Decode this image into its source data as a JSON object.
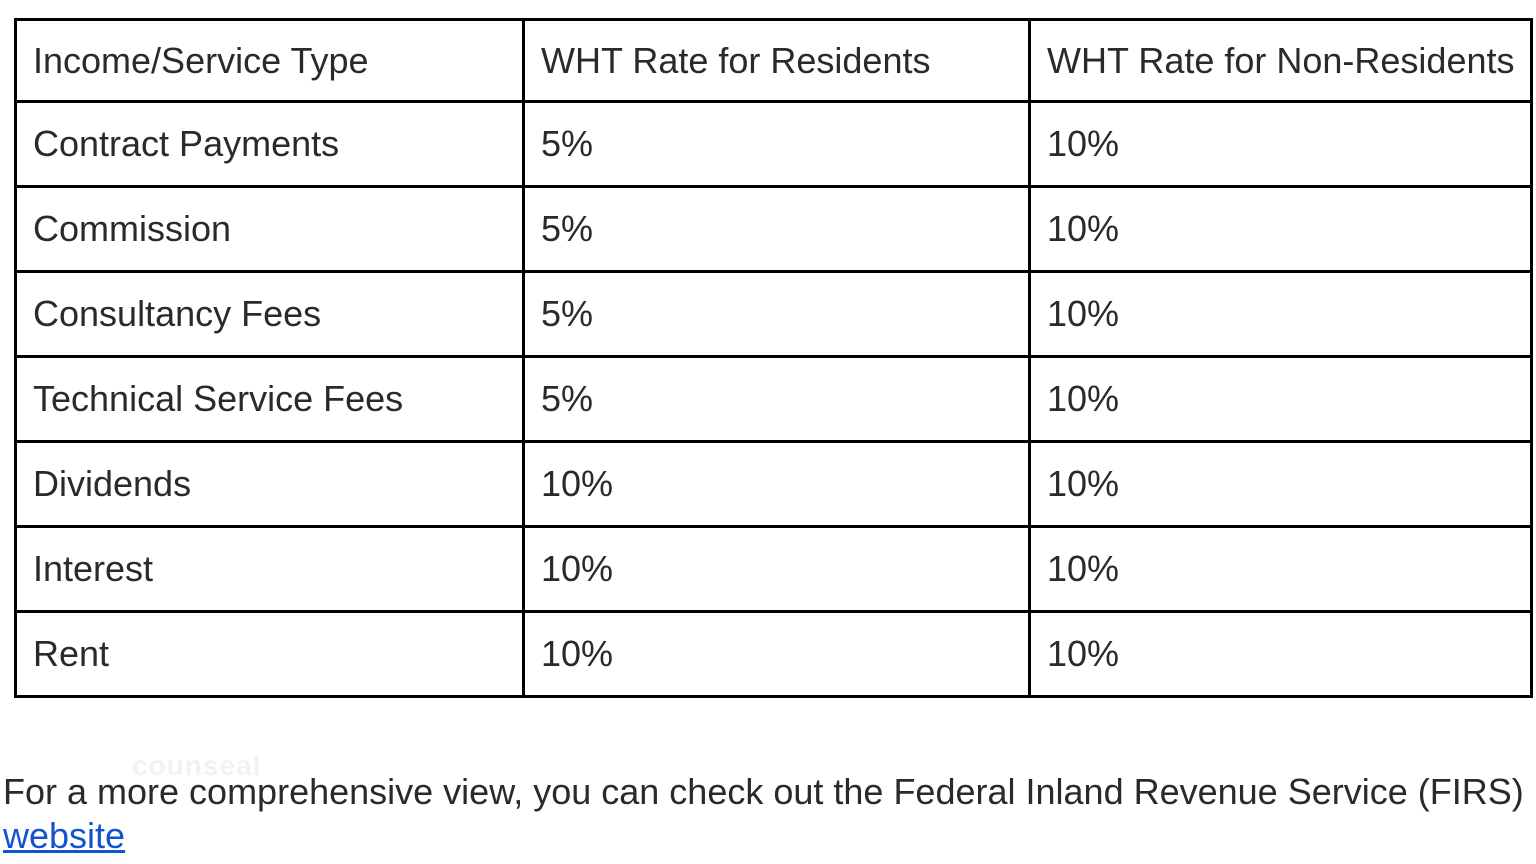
{
  "table": {
    "columns": [
      "Income/Service Type",
      "WHT Rate for Residents",
      "WHT Rate for Non-Residents"
    ],
    "rows": [
      [
        "Contract Payments",
        "5%",
        "10%"
      ],
      [
        "Commission",
        "5%",
        "10%"
      ],
      [
        "Consultancy Fees",
        "5%",
        "10%"
      ],
      [
        "Technical Service Fees",
        "5%",
        "10%"
      ],
      [
        "Dividends",
        "10%",
        "10%"
      ],
      [
        "Interest",
        "10%",
        "10%"
      ],
      [
        "Rent",
        "10%",
        "10%"
      ]
    ]
  },
  "footer": {
    "text": "For a more comprehensive view, you can check out the Federal Inland Revenue Service (FIRS)",
    "link_label": "website"
  },
  "watermark": {
    "text": "counseal"
  },
  "colors": {
    "background": "#ffffff",
    "text": "#2a2a2a",
    "table_border": "#000000",
    "link": "#1155cc",
    "watermark": "#f2f2ef"
  }
}
